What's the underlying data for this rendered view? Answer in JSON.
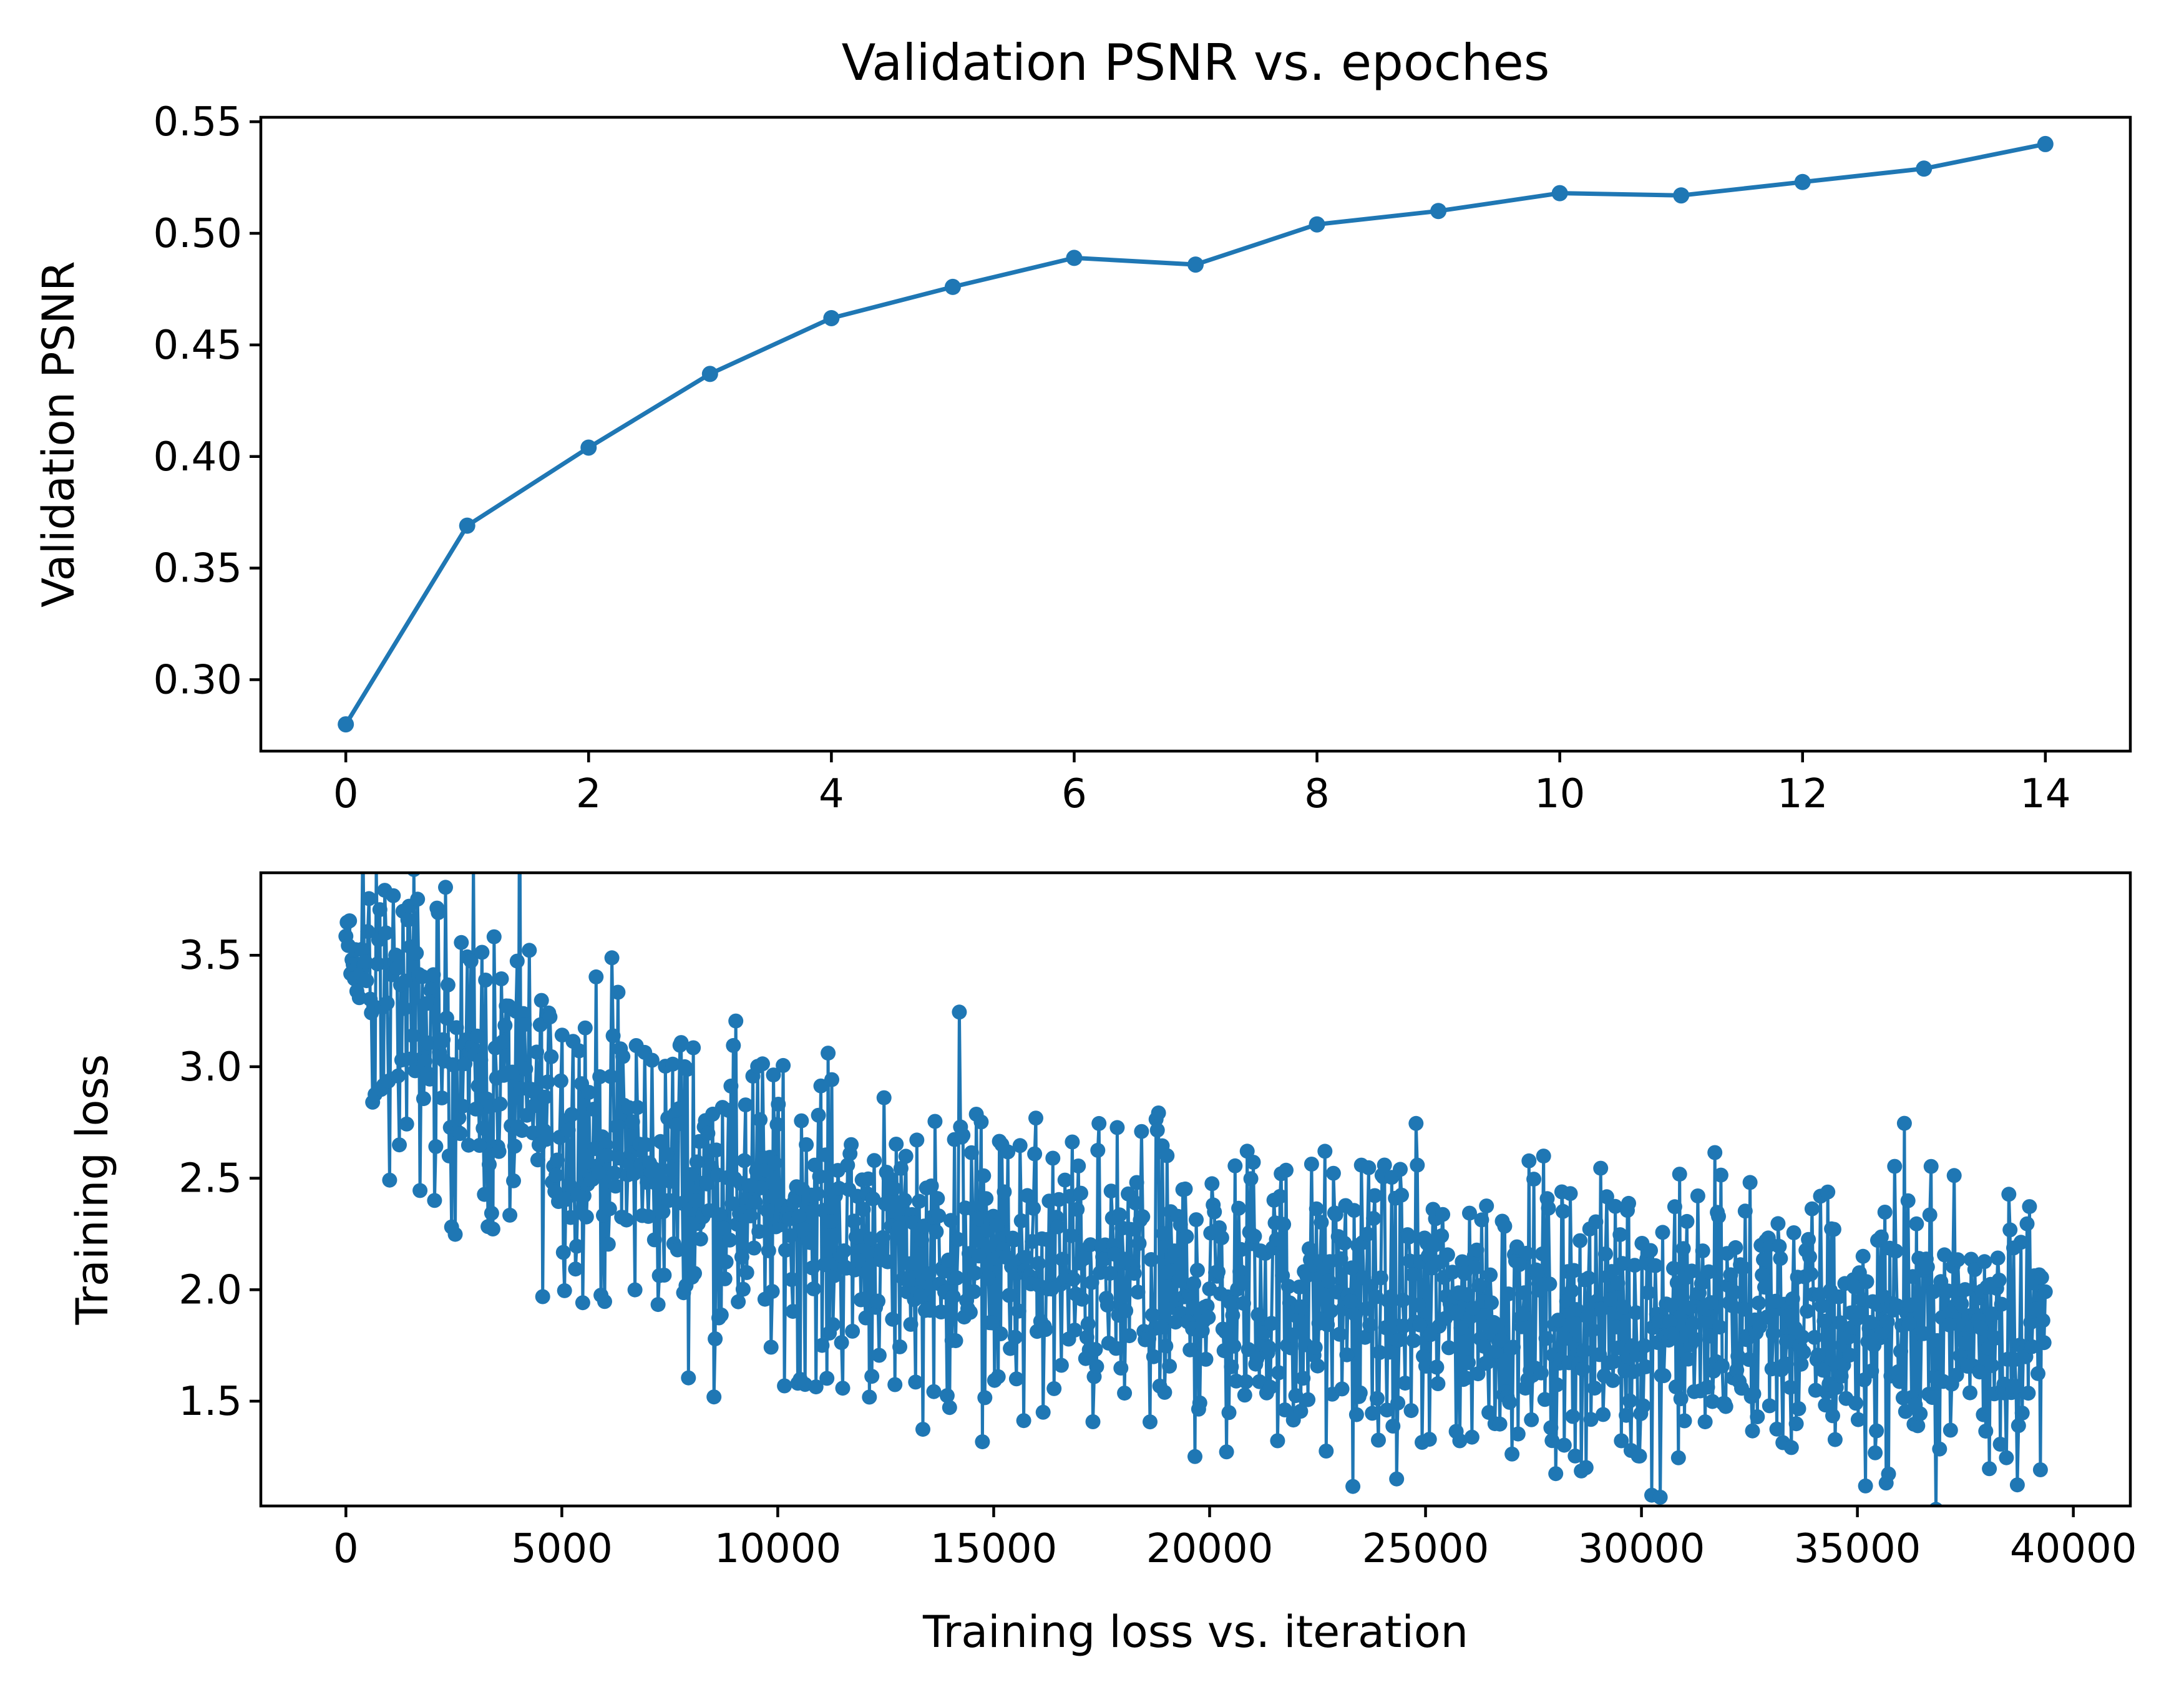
{
  "chart_data": [
    {
      "type": "line",
      "title": "Validation PSNR vs. epoches",
      "xlabel": "",
      "ylabel": "Validation PSNR",
      "xlim": [
        -0.7,
        14.7
      ],
      "ylim": [
        0.268,
        0.552
      ],
      "xticks": [
        0,
        2,
        4,
        6,
        8,
        10,
        12,
        14
      ],
      "xtick_labels": [
        "0",
        "2",
        "4",
        "6",
        "8",
        "10",
        "12",
        "14"
      ],
      "yticks": [
        0.3,
        0.35,
        0.4,
        0.45,
        0.5,
        0.55
      ],
      "ytick_labels": [
        "0.30",
        "0.35",
        "0.40",
        "0.45",
        "0.50",
        "0.55"
      ],
      "grid": false,
      "legend": "none",
      "color": "#1f77b4",
      "marker": "circle",
      "series": [
        {
          "x": [
            0,
            1,
            2,
            3,
            4,
            5,
            6,
            7,
            8,
            9,
            10,
            11,
            12,
            13,
            14
          ],
          "y": [
            0.28,
            0.369,
            0.404,
            0.437,
            0.462,
            0.476,
            0.489,
            0.486,
            0.504,
            0.51,
            0.518,
            0.517,
            0.523,
            0.529,
            0.54
          ]
        }
      ]
    },
    {
      "type": "line",
      "title": "",
      "xlabel": "Training loss vs. iteration",
      "ylabel": "Training loss",
      "xlim": [
        -1970,
        41320
      ],
      "ylim": [
        1.03,
        3.87
      ],
      "xticks": [
        0,
        5000,
        10000,
        15000,
        20000,
        25000,
        30000,
        35000,
        40000
      ],
      "xtick_labels": [
        "0",
        "5000",
        "10000",
        "15000",
        "20000",
        "25000",
        "30000",
        "35000",
        "40000"
      ],
      "yticks": [
        1.5,
        2.0,
        2.5,
        3.0,
        3.5
      ],
      "ytick_labels": [
        "1.5",
        "2.0",
        "2.5",
        "3.0",
        "3.5"
      ],
      "grid": false,
      "legend": "none",
      "color": "#1f77b4",
      "marker": "circle",
      "series": [
        {
          "x": [
            0,
            39350
          ],
          "y_trend_start": 3.45,
          "y_trend_end": 1.8,
          "spread_start": 0.35,
          "spread_end": 0.3,
          "n_points": 1400
        }
      ]
    }
  ]
}
